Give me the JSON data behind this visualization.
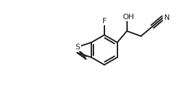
{
  "bg_color": "#ffffff",
  "line_color": "#1a1a1a",
  "line_width": 1.4,
  "font_size": 8.0,
  "figsize": [
    2.81,
    1.33
  ],
  "dpi": 100,
  "xlim": [
    0,
    281
  ],
  "ylim": [
    0,
    133
  ]
}
